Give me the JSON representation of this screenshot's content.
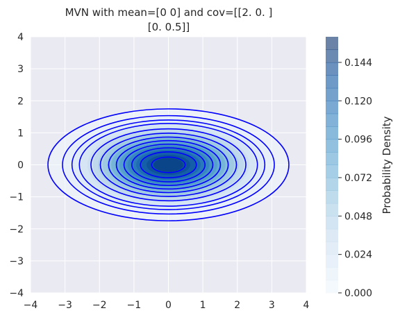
{
  "chart_data": {
    "type": "contour",
    "title_line1": "MVN with mean=[0 0] and cov=[[2.  0. ]",
    "title_line2": "[0.  0.5]]",
    "xlabel": "",
    "ylabel": "",
    "xlim": [
      -4,
      4
    ],
    "ylim": [
      -4,
      4
    ],
    "x_ticks": [
      -4,
      -3,
      -2,
      -1,
      0,
      1,
      2,
      3,
      4
    ],
    "y_ticks": [
      -4,
      -3,
      -2,
      -1,
      0,
      1,
      2,
      3,
      4
    ],
    "x_tick_labels": [
      "−4",
      "−3",
      "−2",
      "−1",
      "0",
      "1",
      "2",
      "3",
      "4"
    ],
    "y_tick_labels": [
      "−4",
      "−3",
      "−2",
      "−1",
      "0",
      "1",
      "2",
      "3",
      "4"
    ],
    "grid": true,
    "mean": [
      0,
      0
    ],
    "cov": [
      [
        2.0,
        0.0
      ],
      [
        0.0,
        0.5
      ]
    ],
    "peak_density": 0.1592,
    "contour_line_color": "#0000ff",
    "contour_line_levels": [
      0.0075,
      0.015,
      0.0225,
      0.03,
      0.045,
      0.06,
      0.075,
      0.09,
      0.105,
      0.12,
      0.135,
      0.15
    ],
    "filled_levels_max": 0.16,
    "colormap": "Blues",
    "colorbar": {
      "label": "Probability Density",
      "min": 0,
      "max": 0.16,
      "ticks": [
        0.0,
        0.024,
        0.048,
        0.072,
        0.096,
        0.12,
        0.144
      ],
      "tick_labels": [
        "0.000",
        "0.024",
        "0.048",
        "0.072",
        "0.096",
        "0.120",
        "0.144"
      ]
    },
    "colors": {
      "axes_background": "#eaeaf2",
      "grid": "#ffffff",
      "text": "#262626"
    }
  }
}
